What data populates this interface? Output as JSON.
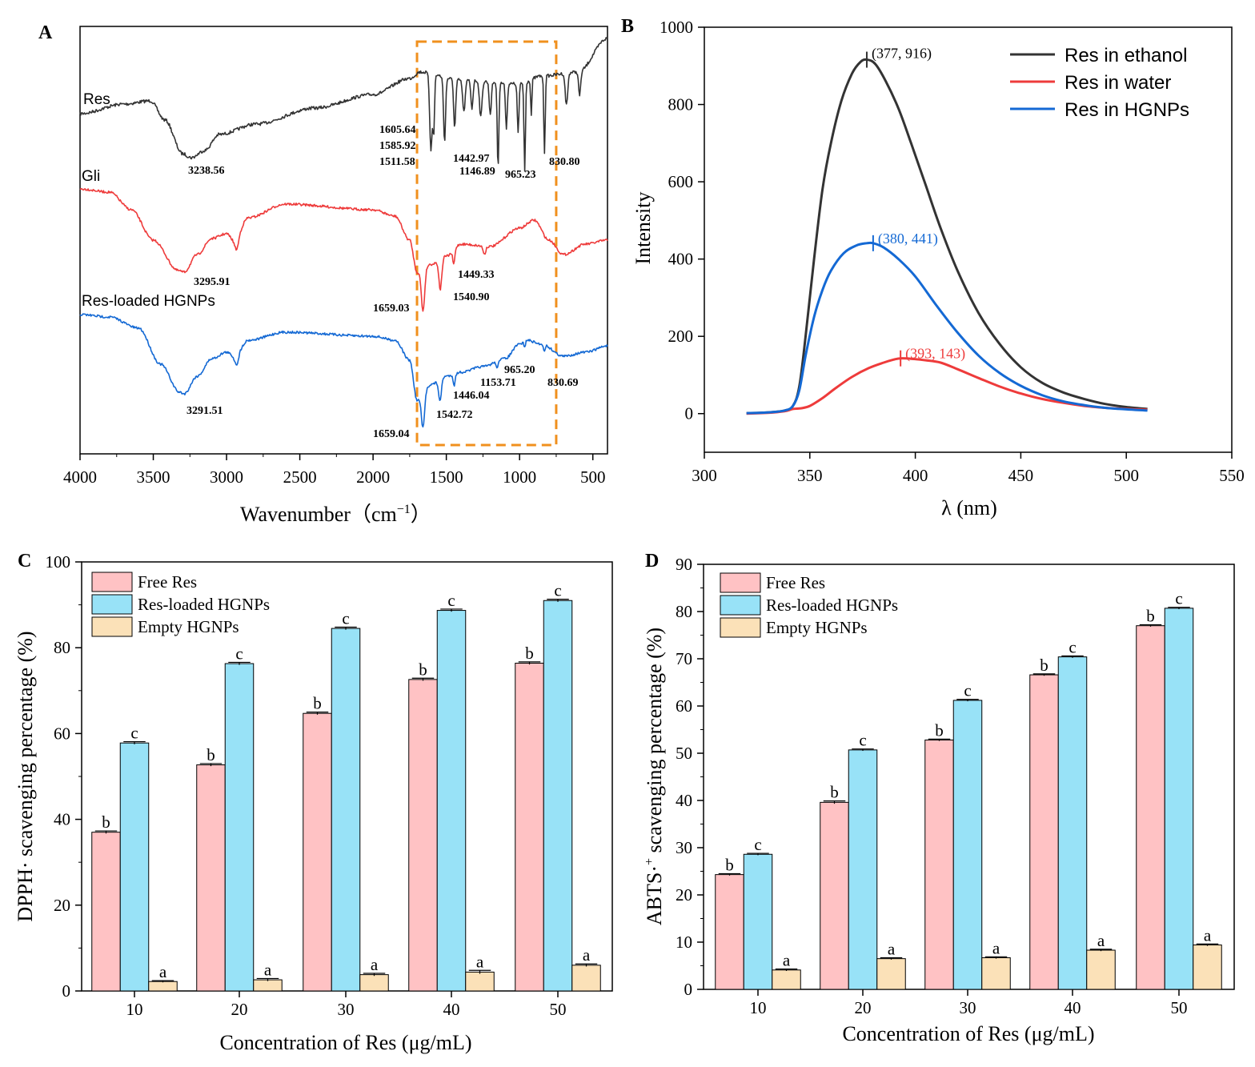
{
  "colors": {
    "black": "#333333",
    "red": "#ee3b3b",
    "blue": "#1469d4",
    "pink": "#ffc2c4",
    "cyan": "#98e2f7",
    "tan": "#fbe1b8",
    "orange": "#f0901e"
  },
  "chart_data": [
    {
      "panel": "A",
      "type": "line",
      "xlabel": "Wavenumber（cm",
      "xlabel_sup": "−1",
      "xlabel_tail": "）",
      "xlim": [
        4000,
        400
      ],
      "xticks": [
        "4000",
        "3500",
        "3000",
        "2500",
        "2000",
        "1500",
        "1000",
        "500"
      ],
      "highlight_box_range": [
        1700,
        750
      ],
      "series": [
        {
          "name": "Res",
          "color": "#333333",
          "peaks": [
            "3238.56",
            "1605.64",
            "1585.92",
            "1511.58",
            "1442.97",
            "1146.89",
            "965.23",
            "830.80"
          ]
        },
        {
          "name": "Gli",
          "color": "#ee3b3b",
          "peaks": [
            "3295.91",
            "1659.03",
            "1540.90",
            "1449.33"
          ]
        },
        {
          "name": "Res-loaded HGNPs",
          "color": "#1469d4",
          "peaks": [
            "3291.51",
            "1659.04",
            "1542.72",
            "1446.04",
            "1153.71",
            "965.20",
            "830.69"
          ]
        }
      ]
    },
    {
      "panel": "B",
      "type": "line",
      "xlabel": "λ (nm)",
      "ylabel": "Intensity",
      "xlim": [
        300,
        550
      ],
      "ylim": [
        -100,
        1000
      ],
      "xticks": [
        "300",
        "350",
        "400",
        "450",
        "500",
        "550"
      ],
      "yticks": [
        "0",
        "200",
        "400",
        "600",
        "800",
        "1000"
      ],
      "series": [
        {
          "name": "Res in ethanol",
          "color": "#333333",
          "peak_label": "(377, 916)",
          "peak": [
            377,
            916
          ],
          "points": [
            [
              320,
              1
            ],
            [
              330,
              3
            ],
            [
              338,
              8
            ],
            [
              342,
              20
            ],
            [
              345,
              70
            ],
            [
              348,
              200
            ],
            [
              352,
              400
            ],
            [
              356,
              580
            ],
            [
              360,
              700
            ],
            [
              365,
              810
            ],
            [
              370,
              880
            ],
            [
              374,
              910
            ],
            [
              377,
              916
            ],
            [
              381,
              905
            ],
            [
              386,
              860
            ],
            [
              392,
              790
            ],
            [
              398,
              700
            ],
            [
              405,
              590
            ],
            [
              412,
              480
            ],
            [
              420,
              370
            ],
            [
              430,
              260
            ],
            [
              440,
              180
            ],
            [
              450,
              120
            ],
            [
              460,
              80
            ],
            [
              470,
              55
            ],
            [
              480,
              38
            ],
            [
              490,
              25
            ],
            [
              500,
              17
            ],
            [
              510,
              12
            ]
          ]
        },
        {
          "name": "Res in water",
          "color": "#ee3b3b",
          "peak_label": "(393, 143)",
          "peak": [
            393,
            143
          ],
          "points": [
            [
              320,
              0
            ],
            [
              330,
              2
            ],
            [
              338,
              6
            ],
            [
              342,
              12
            ],
            [
              346,
              14
            ],
            [
              350,
              20
            ],
            [
              356,
              40
            ],
            [
              362,
              65
            ],
            [
              370,
              95
            ],
            [
              378,
              118
            ],
            [
              385,
              132
            ],
            [
              390,
              140
            ],
            [
              393,
              143
            ],
            [
              398,
              142
            ],
            [
              405,
              138
            ],
            [
              412,
              132
            ],
            [
              420,
              115
            ],
            [
              430,
              92
            ],
            [
              440,
              70
            ],
            [
              450,
              52
            ],
            [
              460,
              38
            ],
            [
              470,
              28
            ],
            [
              480,
              20
            ],
            [
              490,
              15
            ],
            [
              500,
              12
            ],
            [
              510,
              10
            ]
          ]
        },
        {
          "name": "Res in HGNPs",
          "color": "#1469d4",
          "peak_label": "(380, 441)",
          "peak": [
            380,
            441
          ],
          "points": [
            [
              320,
              1
            ],
            [
              330,
              3
            ],
            [
              338,
              8
            ],
            [
              342,
              20
            ],
            [
              345,
              60
            ],
            [
              348,
              150
            ],
            [
              352,
              250
            ],
            [
              356,
              320
            ],
            [
              360,
              370
            ],
            [
              366,
              415
            ],
            [
              372,
              435
            ],
            [
              377,
              441
            ],
            [
              380,
              441
            ],
            [
              385,
              430
            ],
            [
              392,
              400
            ],
            [
              400,
              355
            ],
            [
              410,
              280
            ],
            [
              420,
              210
            ],
            [
              430,
              150
            ],
            [
              440,
              105
            ],
            [
              450,
              72
            ],
            [
              460,
              48
            ],
            [
              470,
              32
            ],
            [
              480,
              22
            ],
            [
              490,
              15
            ],
            [
              500,
              11
            ],
            [
              510,
              8
            ]
          ]
        }
      ]
    },
    {
      "panel": "C",
      "type": "bar",
      "xlabel": "Concentration of Res (μg/mL)",
      "ylabel": "DPPH· scavenging percentage (%)",
      "ylim": [
        0,
        100
      ],
      "yticks": [
        "0",
        "20",
        "40",
        "60",
        "80",
        "100"
      ],
      "categories": [
        "10",
        "20",
        "30",
        "40",
        "50"
      ],
      "series": [
        {
          "name": "Free Res",
          "color": "#ffc2c4",
          "values": [
            37.0,
            52.7,
            64.7,
            72.6,
            76.4
          ],
          "errors": [
            0.3,
            0.3,
            0.3,
            0.3,
            0.3
          ],
          "letters": [
            "b",
            "b",
            "b",
            "b",
            "b"
          ]
        },
        {
          "name": "Res-loaded HGNPs",
          "color": "#98e2f7",
          "values": [
            57.8,
            76.3,
            84.5,
            88.7,
            91.0
          ],
          "errors": [
            0.3,
            0.3,
            0.3,
            0.3,
            0.3
          ],
          "letters": [
            "c",
            "c",
            "c",
            "c",
            "c"
          ]
        },
        {
          "name": "Empty HGNPs",
          "color": "#fbe1b8",
          "values": [
            2.2,
            2.6,
            3.8,
            4.4,
            6.0
          ],
          "errors": [
            0.2,
            0.3,
            0.3,
            0.4,
            0.3
          ],
          "letters": [
            "a",
            "a",
            "a",
            "a",
            "a"
          ]
        }
      ]
    },
    {
      "panel": "D",
      "type": "bar",
      "xlabel": "Concentration of Res (μg/mL)",
      "ylabel": "ABTS·",
      "ylabel_sup": "+",
      "ylabel_tail": " scavenging percentage (%)",
      "ylim": [
        0,
        90
      ],
      "yticks": [
        "0",
        "10",
        "20",
        "30",
        "40",
        "50",
        "60",
        "70",
        "80",
        "90"
      ],
      "categories": [
        "10",
        "20",
        "30",
        "40",
        "50"
      ],
      "series": [
        {
          "name": "Free Res",
          "color": "#ffc2c4",
          "values": [
            24.3,
            39.6,
            52.8,
            66.6,
            77.0
          ],
          "errors": [
            0.2,
            0.3,
            0.2,
            0.2,
            0.2
          ],
          "letters": [
            "b",
            "b",
            "b",
            "b",
            "b"
          ]
        },
        {
          "name": "Res-loaded HGNPs",
          "color": "#98e2f7",
          "values": [
            28.6,
            50.7,
            61.2,
            70.4,
            80.7
          ],
          "errors": [
            0.2,
            0.2,
            0.2,
            0.2,
            0.2
          ],
          "letters": [
            "c",
            "c",
            "c",
            "c",
            "c"
          ]
        },
        {
          "name": "Empty HGNPs",
          "color": "#fbe1b8",
          "values": [
            4.1,
            6.5,
            6.7,
            8.3,
            9.4
          ],
          "errors": [
            0.2,
            0.2,
            0.2,
            0.2,
            0.2
          ],
          "letters": [
            "a",
            "a",
            "a",
            "a",
            "a"
          ]
        }
      ]
    }
  ]
}
